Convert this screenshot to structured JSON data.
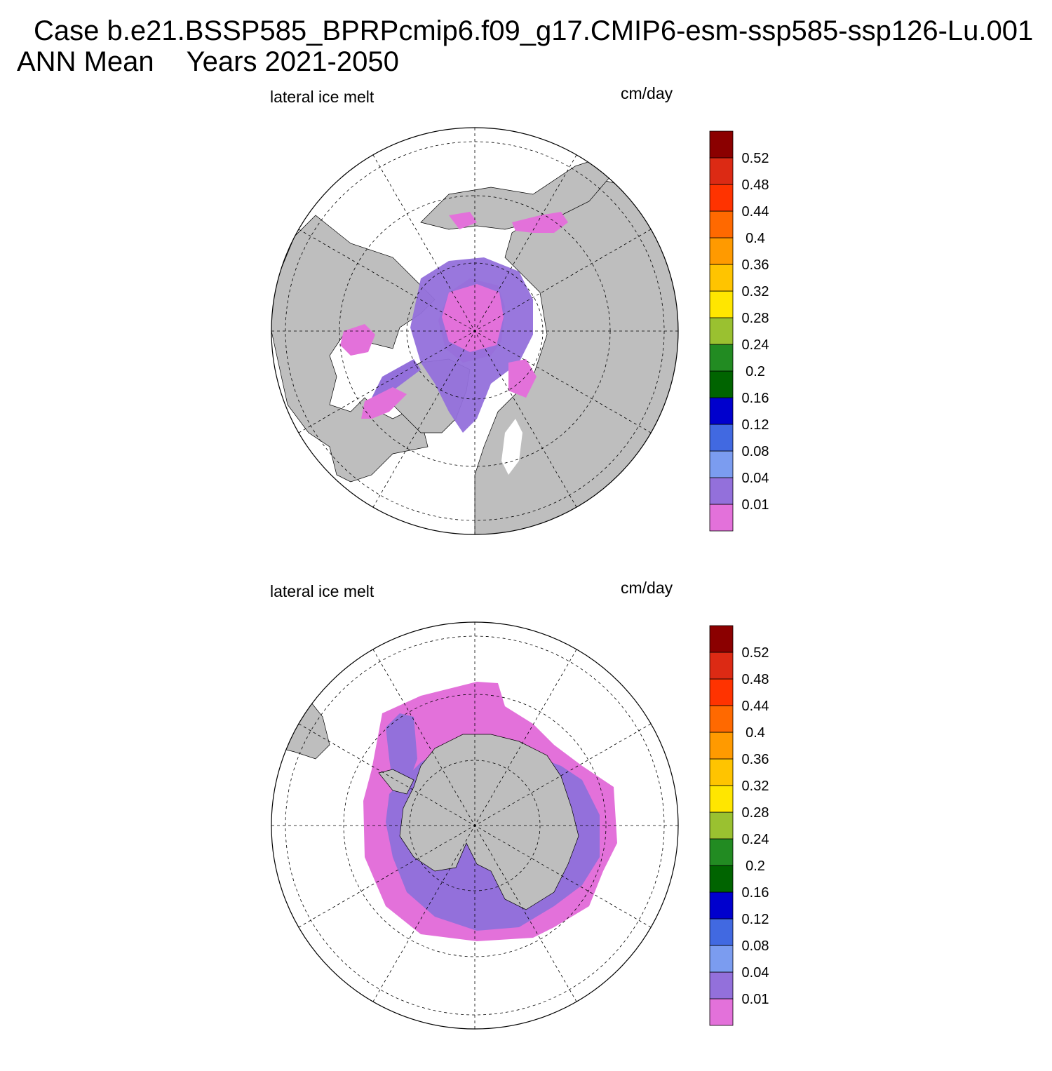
{
  "title": {
    "case": "Case b.e21.BSSP585_BPRPcmip6.f09_g17.CMIP6-esm-ssp585-ssp126-Lu.001",
    "mean": "ANN Mean",
    "years": "Years 2021-2050"
  },
  "colors": {
    "land": "#bebebe",
    "ocean": "#ffffff",
    "legend": [
      "#e371da",
      "#9370db",
      "#7b9cf0",
      "#4169e1",
      "#0000cd",
      "#006400",
      "#228b22",
      "#9ac130",
      "#ffe600",
      "#ffc400",
      "#ff9a00",
      "#ff6900",
      "#ff3300",
      "#dc2a14",
      "#8b0000"
    ]
  },
  "legend_labels": [
    "0.01",
    "0.04",
    "0.08",
    "0.12",
    "0.16",
    "0.2",
    "0.24",
    "0.28",
    "0.32",
    "0.36",
    "0.4",
    "0.44",
    "0.48",
    "0.52"
  ],
  "panels": [
    {
      "id": "north",
      "variable": "lateral ice melt",
      "units": "cm/day",
      "projection": "polar stereographic (north)",
      "shading": "mostly 0.01 and 0.01–0.04 classes"
    },
    {
      "id": "south",
      "variable": "lateral ice melt",
      "units": "cm/day",
      "projection": "polar stereographic (south)",
      "shading": "mostly 0.01 and 0.01–0.04 classes"
    }
  ]
}
